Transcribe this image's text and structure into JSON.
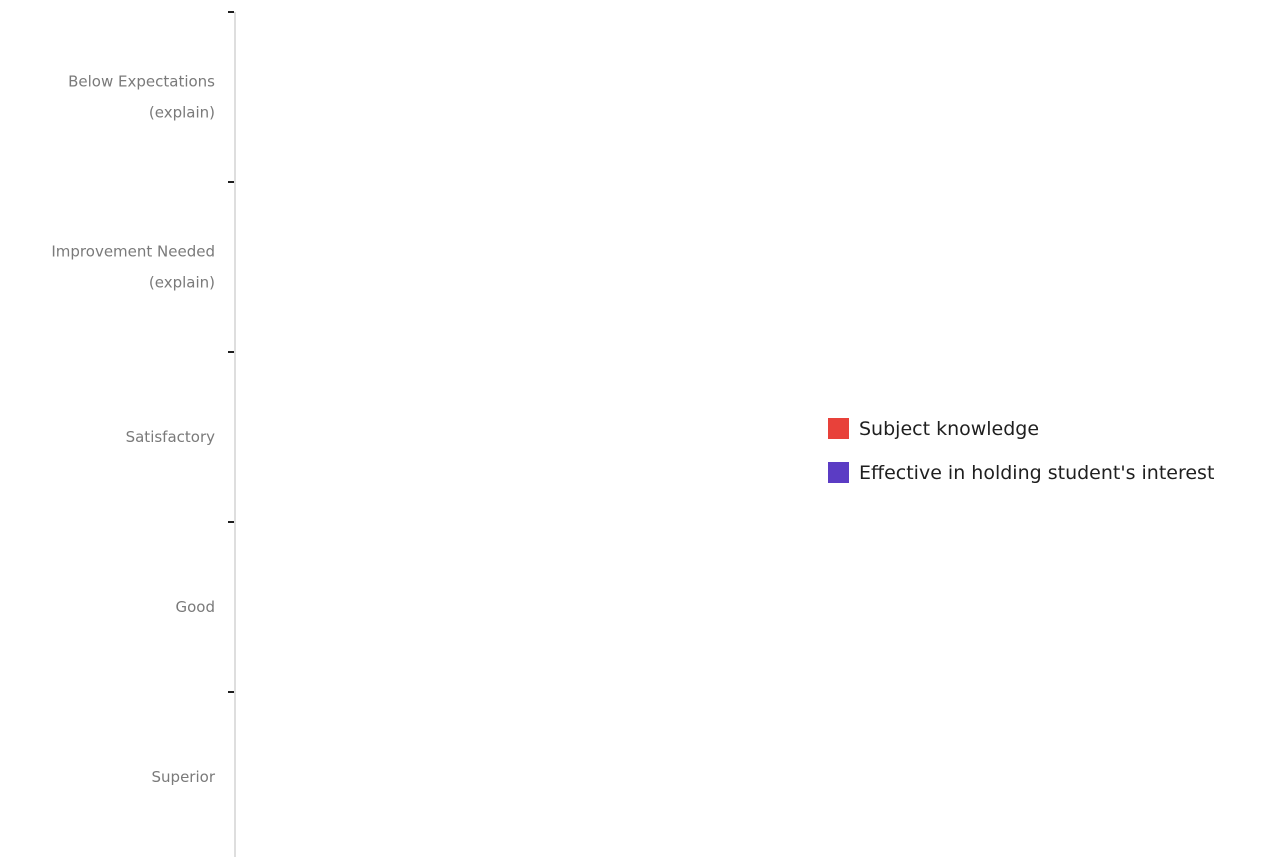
{
  "chart_data": {
    "type": "bar",
    "orientation": "horizontal",
    "categories": [
      [
        "Below Expectations",
        "(explain)"
      ],
      [
        "Improvement Needed",
        "(explain)"
      ],
      [
        "Satisfactory"
      ],
      [
        "Good"
      ],
      [
        "Superior"
      ]
    ],
    "series": [
      {
        "name": "Subject knowledge",
        "color": "#e8413a",
        "values": [
          0,
          0,
          0,
          0,
          0
        ]
      },
      {
        "name": "Effective in holding student's interest",
        "color": "#5b3cc4",
        "values": [
          0,
          0,
          0,
          0,
          0
        ]
      }
    ],
    "title": "",
    "xlabel": "",
    "ylabel": "",
    "grid": false,
    "legend_position": "right"
  },
  "colors": {
    "axis": "#c8c8c8",
    "tick": "#1f1f1f",
    "category_text": "#7a7a7a",
    "legend_text": "#1f1f1f"
  }
}
